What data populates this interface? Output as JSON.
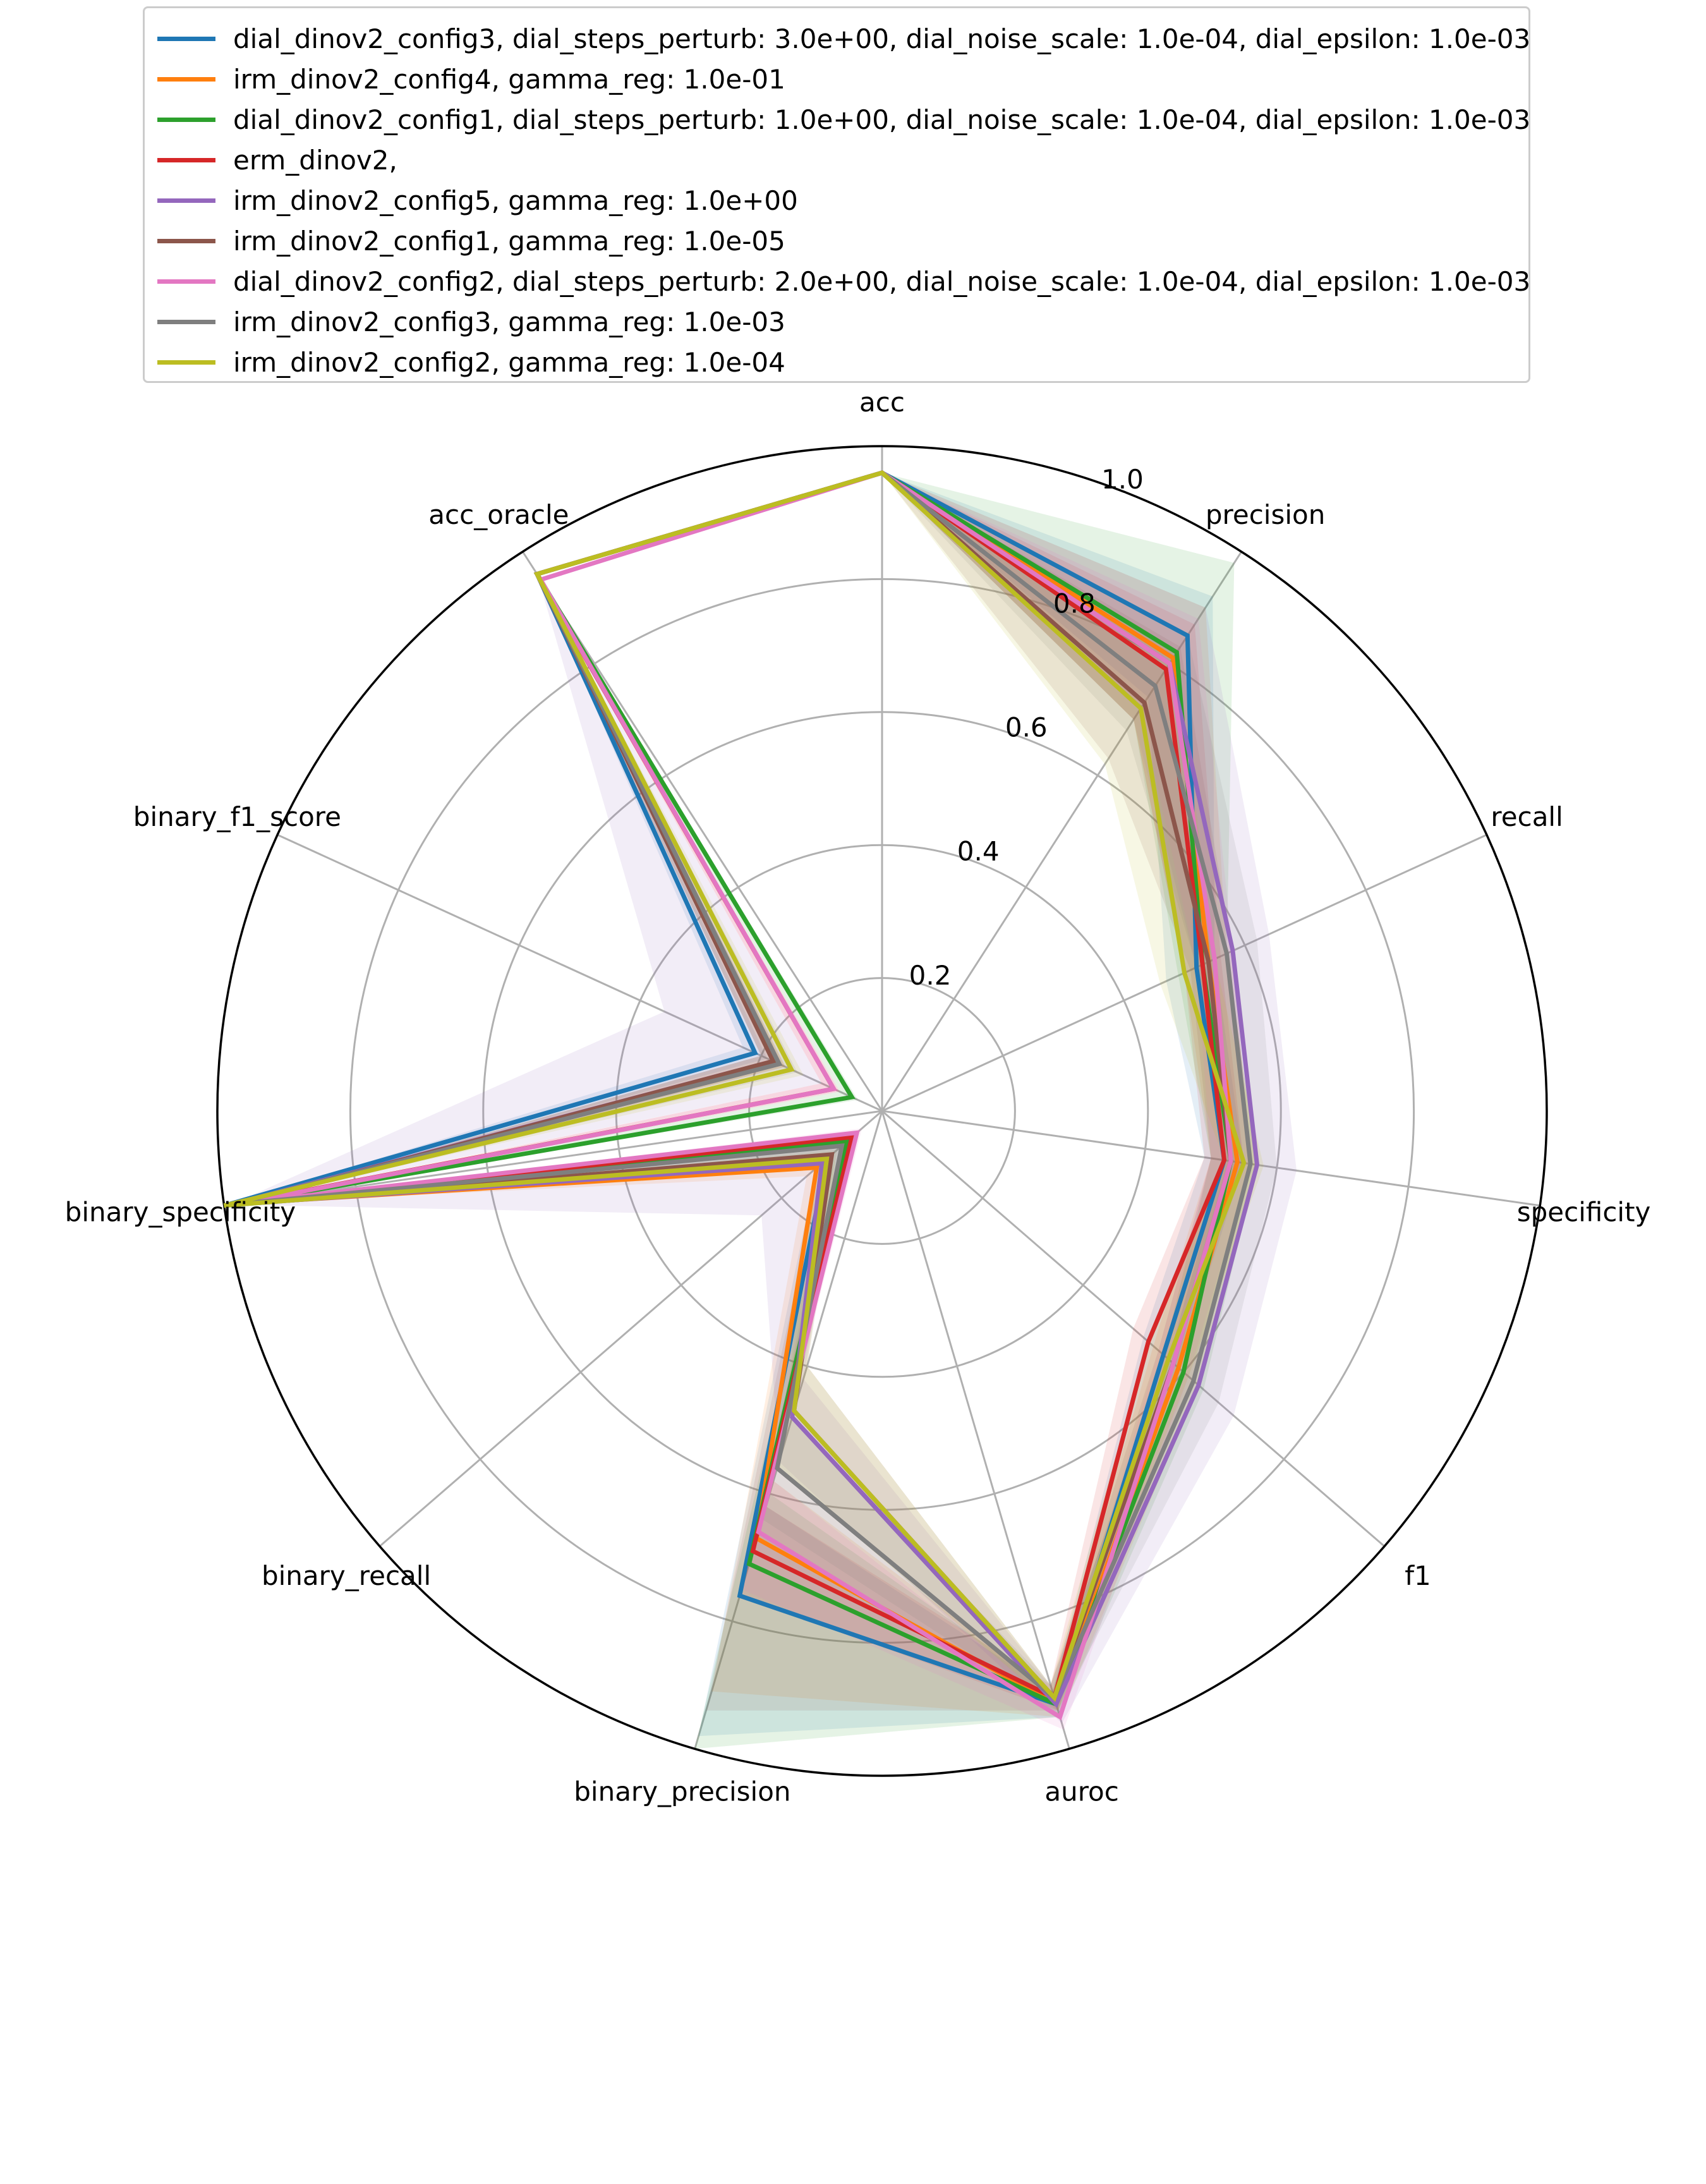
{
  "chart_data": {
    "type": "radar",
    "axes": [
      "acc",
      "precision",
      "recall",
      "specificity",
      "f1",
      "auroc",
      "binary_precision",
      "binary_recall",
      "binary_specificity",
      "binary_f1_score",
      "acc_oracle"
    ],
    "rlim": [
      0,
      1.0
    ],
    "radial_ticks": [
      "0.2",
      "0.4",
      "0.6",
      "0.8",
      "1.0"
    ],
    "grid": true,
    "legend_position": "top",
    "series": [
      {
        "name": "dial_dinov2_config3, dial_steps_perturb: 3.0e+00, dial_noise_scale: 1.0e-04, dial_epsilon: 1.0e-03",
        "color": "#1f77b4",
        "values": [
          0.96,
          0.85,
          0.52,
          0.52,
          0.56,
          0.93,
          0.76,
          0.11,
          1.0,
          0.21,
          0.96
        ],
        "lower": [
          0.96,
          0.74,
          0.47,
          0.49,
          0.52,
          0.91,
          0.62,
          0.09,
          1.0,
          0.19,
          0.96
        ],
        "upper": [
          0.96,
          0.92,
          0.55,
          0.55,
          0.59,
          0.95,
          0.98,
          0.13,
          1.0,
          0.23,
          0.96
        ]
      },
      {
        "name": "irm_dinov2_config4, gamma_reg: 1.0e-01",
        "color": "#ff7f0e",
        "values": [
          0.96,
          0.81,
          0.54,
          0.54,
          0.59,
          0.93,
          0.67,
          0.13,
          0.98,
          0.18,
          0.96
        ],
        "lower": [
          0.96,
          0.7,
          0.5,
          0.5,
          0.54,
          0.91,
          0.58,
          0.1,
          0.98,
          0.16,
          0.96
        ],
        "upper": [
          0.96,
          0.9,
          0.57,
          0.57,
          0.63,
          0.95,
          0.91,
          0.15,
          0.98,
          0.2,
          0.96
        ]
      },
      {
        "name": "dial_dinov2_config1, dial_steps_perturb: 1.0e+00, dial_noise_scale: 1.0e-04, dial_epsilon: 1.0e-03",
        "color": "#2ca02c",
        "values": [
          0.96,
          0.82,
          0.53,
          0.53,
          0.6,
          0.93,
          0.71,
          0.07,
          0.99,
          0.05,
          0.96
        ],
        "lower": [
          0.96,
          0.7,
          0.49,
          0.5,
          0.56,
          0.91,
          0.6,
          0.06,
          0.99,
          0.04,
          0.96
        ],
        "upper": [
          0.96,
          0.98,
          0.57,
          0.57,
          0.64,
          0.95,
          1.0,
          0.09,
          0.99,
          0.07,
          0.96
        ]
      },
      {
        "name": "erm_dinov2,",
        "color": "#d62728",
        "values": [
          0.96,
          0.79,
          0.53,
          0.52,
          0.53,
          0.92,
          0.69,
          0.06,
          0.98,
          0.08,
          0.96
        ],
        "lower": [
          0.96,
          0.7,
          0.5,
          0.49,
          0.5,
          0.9,
          0.62,
          0.05,
          0.98,
          0.07,
          0.96
        ],
        "upper": [
          0.96,
          0.87,
          0.56,
          0.55,
          0.57,
          0.94,
          0.76,
          0.08,
          0.98,
          0.1,
          0.96
        ]
      },
      {
        "name": "irm_dinov2_config5, gamma_reg: 1.0e+00",
        "color": "#9467bd",
        "values": [
          0.96,
          0.8,
          0.58,
          0.57,
          0.63,
          0.93,
          0.48,
          0.12,
          0.99,
          0.18,
          0.96
        ],
        "lower": [
          0.96,
          0.7,
          0.52,
          0.52,
          0.57,
          0.9,
          0.42,
          0.08,
          0.99,
          0.1,
          0.96
        ],
        "upper": [
          0.96,
          0.9,
          0.64,
          0.63,
          0.7,
          0.96,
          0.55,
          0.24,
          0.99,
          0.36,
          0.96
        ]
      },
      {
        "name": "irm_dinov2_config1, gamma_reg: 1.0e-05",
        "color": "#8c564b",
        "values": [
          0.96,
          0.73,
          0.54,
          0.53,
          0.58,
          0.92,
          0.47,
          0.1,
          0.98,
          0.18,
          0.96
        ],
        "lower": [
          0.96,
          0.63,
          0.51,
          0.5,
          0.55,
          0.9,
          0.4,
          0.08,
          0.98,
          0.16,
          0.96
        ],
        "upper": [
          0.96,
          0.83,
          0.58,
          0.56,
          0.62,
          0.94,
          0.94,
          0.12,
          0.98,
          0.2,
          0.96
        ]
      },
      {
        "name": "dial_dinov2_config2, dial_steps_perturb: 2.0e+00, dial_noise_scale: 1.0e-04, dial_epsilon: 1.0e-03",
        "color": "#e377c2",
        "values": [
          0.96,
          0.8,
          0.55,
          0.53,
          0.58,
          0.95,
          0.66,
          0.05,
          0.97,
          0.08,
          0.95
        ],
        "lower": [
          0.96,
          0.72,
          0.52,
          0.5,
          0.55,
          0.93,
          0.58,
          0.04,
          0.97,
          0.07,
          0.95
        ],
        "upper": [
          0.96,
          0.88,
          0.58,
          0.56,
          0.61,
          0.97,
          0.75,
          0.07,
          0.97,
          0.1,
          0.95
        ]
      },
      {
        "name": "irm_dinov2_config3, gamma_reg: 1.0e-03",
        "color": "#7f7f7f",
        "values": [
          0.96,
          0.76,
          0.57,
          0.56,
          0.62,
          0.92,
          0.56,
          0.08,
          0.99,
          0.17,
          0.96
        ],
        "lower": [
          0.96,
          0.68,
          0.52,
          0.52,
          0.57,
          0.9,
          0.48,
          0.06,
          0.99,
          0.14,
          0.96
        ],
        "upper": [
          0.96,
          0.85,
          0.62,
          0.6,
          0.67,
          0.94,
          0.64,
          0.1,
          0.99,
          0.2,
          0.96
        ]
      },
      {
        "name": "irm_dinov2_config2, gamma_reg: 1.0e-04",
        "color": "#bcbd22",
        "values": [
          0.96,
          0.72,
          0.5,
          0.55,
          0.57,
          0.92,
          0.47,
          0.11,
          1.0,
          0.15,
          0.96
        ],
        "lower": [
          0.96,
          0.62,
          0.46,
          0.52,
          0.53,
          0.9,
          0.4,
          0.09,
          1.0,
          0.13,
          0.96
        ],
        "upper": [
          0.96,
          0.82,
          0.55,
          0.58,
          0.61,
          0.94,
          0.56,
          0.13,
          1.0,
          0.17,
          0.96
        ]
      }
    ]
  }
}
